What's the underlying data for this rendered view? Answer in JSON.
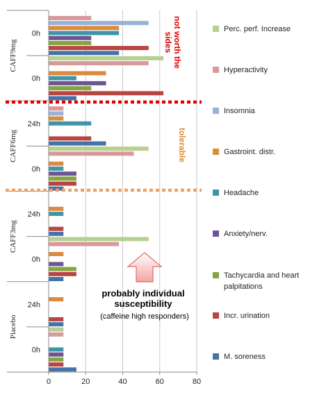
{
  "chart_data": {
    "type": "bar",
    "orientation": "horizontal",
    "xlim": [
      0,
      80
    ],
    "xticks": [
      0,
      20,
      40,
      60,
      80
    ],
    "grid": true,
    "legend_position": "right",
    "series": [
      {
        "name": "Perc. perf. Increase",
        "color": "#b7d08f"
      },
      {
        "name": "Hyperactivity",
        "color": "#d9999a"
      },
      {
        "name": "Insomnia",
        "color": "#98b3d8"
      },
      {
        "name": "Gastroint. distr.",
        "color": "#dc8a3f"
      },
      {
        "name": "Headache",
        "color": "#3f95a8"
      },
      {
        "name": "Anxiety/nerv.",
        "color": "#6c5594"
      },
      {
        "name": "Tachycardia and heart palpitations",
        "color": "#86a541"
      },
      {
        "name": "Incr. urination",
        "color": "#b94441"
      },
      {
        "name": "M. soreness",
        "color": "#4573a8"
      }
    ],
    "groups": [
      {
        "name": "CAFF9mg",
        "rows": [
          {
            "label": "0h",
            "values": [
              0,
              23,
              54,
              38,
              38,
              23,
              23,
              54,
              38
            ]
          },
          {
            "label": "0h",
            "values": [
              62,
              54,
              0,
              31,
              15,
              31,
              23,
              62,
              15
            ]
          }
        ]
      },
      {
        "name": "CAFF6mg",
        "rows": [
          {
            "label": "24h",
            "values": [
              0,
              8,
              8,
              8,
              23,
              0,
              0,
              23,
              31
            ]
          },
          {
            "label": "0h",
            "values": [
              54,
              46,
              0,
              8,
              8,
              15,
              15,
              15,
              8
            ]
          }
        ]
      },
      {
        "name": "CAFF3mg",
        "rows": [
          {
            "label": "24h",
            "values": [
              0,
              0,
              0,
              8,
              8,
              0,
              0,
              8,
              8
            ]
          },
          {
            "label": "0h",
            "values": [
              54,
              38,
              0,
              8,
              0,
              8,
              15,
              15,
              8
            ]
          }
        ]
      },
      {
        "name": "Placebo",
        "rows": [
          {
            "label": "24h",
            "values": [
              0,
              0,
              0,
              8,
              0,
              0,
              0,
              8,
              8
            ]
          },
          {
            "label": "0h",
            "values": [
              8,
              8,
              0,
              0,
              8,
              8,
              8,
              8,
              15
            ]
          }
        ]
      }
    ]
  },
  "annotations": {
    "not_worth": "not worth the sides",
    "tolerable": "tolerable",
    "susceptibility": "probably individual susceptibility",
    "responders": "(caffeine high responders)"
  }
}
